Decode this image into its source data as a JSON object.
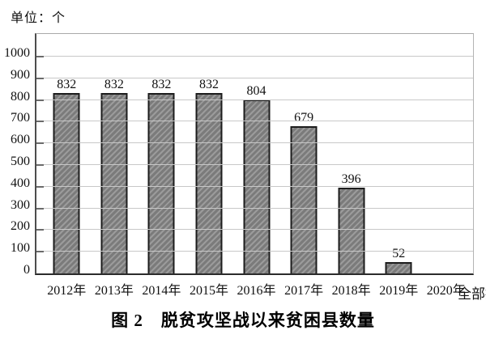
{
  "unit_label": "单位：个",
  "caption": "图 2　脱贫攻坚战以来贫困县数量",
  "annotation": "全部摘帽",
  "chart_data": {
    "type": "bar",
    "title": "图 2 脱贫攻坚战以来贫困县数量",
    "unit": "单位：个",
    "categories": [
      "2012年",
      "2013年",
      "2014年",
      "2015年",
      "2016年",
      "2017年",
      "2018年",
      "2019年",
      "2020年"
    ],
    "values": [
      832,
      832,
      832,
      832,
      804,
      679,
      396,
      52,
      null
    ],
    "xlabel": "",
    "ylabel": "",
    "ylim": [
      0,
      1100
    ],
    "yticks": [
      0,
      100,
      200,
      300,
      400,
      500,
      600,
      700,
      800,
      900,
      1000
    ],
    "grid": true,
    "legend": "none",
    "bar_fill": "#8a8a8a",
    "bar_hatch": "diagonal-forward",
    "bar_border": "#1c1c1c",
    "gridline_color": "#c8c8c8",
    "annotations": [
      {
        "text": "全部摘帽",
        "category": "2019年",
        "value": 52,
        "position": "right-of-bar"
      }
    ]
  }
}
